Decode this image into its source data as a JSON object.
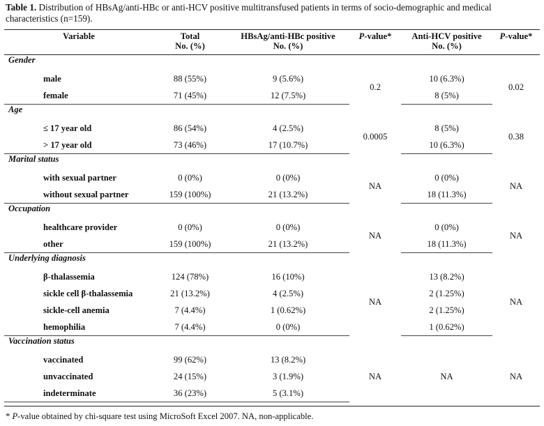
{
  "caption": {
    "label": "Table 1.",
    "text": "Distribution of HBsAg/anti-HBc or anti-HCV positive multitransfused patients in terms of socio-demographic and medical characteristics (n=159)."
  },
  "headers": {
    "variable": "Variable",
    "total_line1": "Total",
    "total_line2": "No. (%)",
    "hbs_line1": "HBsAg/anti-HBc positive",
    "hbs_line2": "No. (%)",
    "pvalue1_ital": "P",
    "pvalue1_rest": "-value*",
    "hcv_line1": "Anti-HCV positive",
    "hcv_line2": "No. (%)",
    "pvalue2_ital": "P",
    "pvalue2_rest": "-value*"
  },
  "sections": [
    {
      "title": "Gender",
      "p_hbs": "0.2",
      "p_hcv": "0.02",
      "rows": [
        {
          "label": "male",
          "total": "88 (55%)",
          "hbs": "9 (5.6%)",
          "hcv": "10 (6.3%)"
        },
        {
          "label": "female",
          "total": "71 (45%)",
          "hbs": "12 (7.5%)",
          "hcv": "8 (5%)"
        }
      ]
    },
    {
      "title": "Age",
      "p_hbs": "0.0005",
      "p_hcv": "0.38",
      "rows": [
        {
          "label": "≤ 17 year old",
          "total": "86 (54%)",
          "hbs": "4 (2.5%)",
          "hcv": "8 (5%)"
        },
        {
          "label": "> 17 year old",
          "total": "73 (46%)",
          "hbs": "17 (10.7%)",
          "hcv": "10 (6.3%)"
        }
      ]
    },
    {
      "title": "Marital status",
      "p_hbs": "NA",
      "p_hcv": "NA",
      "rows": [
        {
          "label": "with sexual  partner",
          "total": "0 (0%)",
          "hbs": "0 (0%)",
          "hcv": "0 (0%)"
        },
        {
          "label": "without sexual partner",
          "total": "159 (100%)",
          "hbs": "21 (13.2%)",
          "hcv": "18 (11.3%)"
        }
      ]
    },
    {
      "title": "Occupation",
      "p_hbs": "NA",
      "p_hcv": "NA",
      "rows": [
        {
          "label": "healthcare provider",
          "total": "0 (0%)",
          "hbs": "0 (0%)",
          "hcv": "0 (0%)"
        },
        {
          "label": "other",
          "total": "159 (100%)",
          "hbs": "21 (13.2%)",
          "hcv": "18 (11.3%)"
        }
      ]
    },
    {
      "title": "Underlying diagnosis",
      "p_hbs": "NA",
      "p_hcv": "NA",
      "rows": [
        {
          "label": "β-thalassemia",
          "total": "124 (78%)",
          "hbs": "16 (10%)",
          "hcv": "13 (8.2%)"
        },
        {
          "label": "sickle cell β-thalassemia",
          "total": "21 (13.2%)",
          "hbs": "4 (2.5%)",
          "hcv": "2 (1.25%)"
        },
        {
          "label": "sickle-cell anemia",
          "total": "7 (4.4%)",
          "hbs": "1 (0.62%)",
          "hcv": "2 (1.25%)"
        },
        {
          "label": "hemophilia",
          "total": "7 (4.4%)",
          "hbs": "0 (0%)",
          "hcv": "1 (0.62%)"
        }
      ]
    },
    {
      "title": "Vaccination status",
      "p_hbs": "NA",
      "p_hcv": "NA",
      "hcv_merged": "NA",
      "rows": [
        {
          "label": "vaccinated",
          "total": "99 (62%)",
          "hbs": "13 (8.2%)",
          "hcv": ""
        },
        {
          "label": "unvaccinated",
          "total": "24 (15%)",
          "hbs": "3 (1.9%)",
          "hcv": ""
        },
        {
          "label": "indeterminate",
          "total": "36 (23%)",
          "hbs": "5 (3.1%)",
          "hcv": ""
        }
      ]
    }
  ],
  "footnote": {
    "star": "* ",
    "ital": "P",
    "rest": "-value obtained by chi-square test using MicroSoft Excel 2007. NA, non-applicable."
  }
}
